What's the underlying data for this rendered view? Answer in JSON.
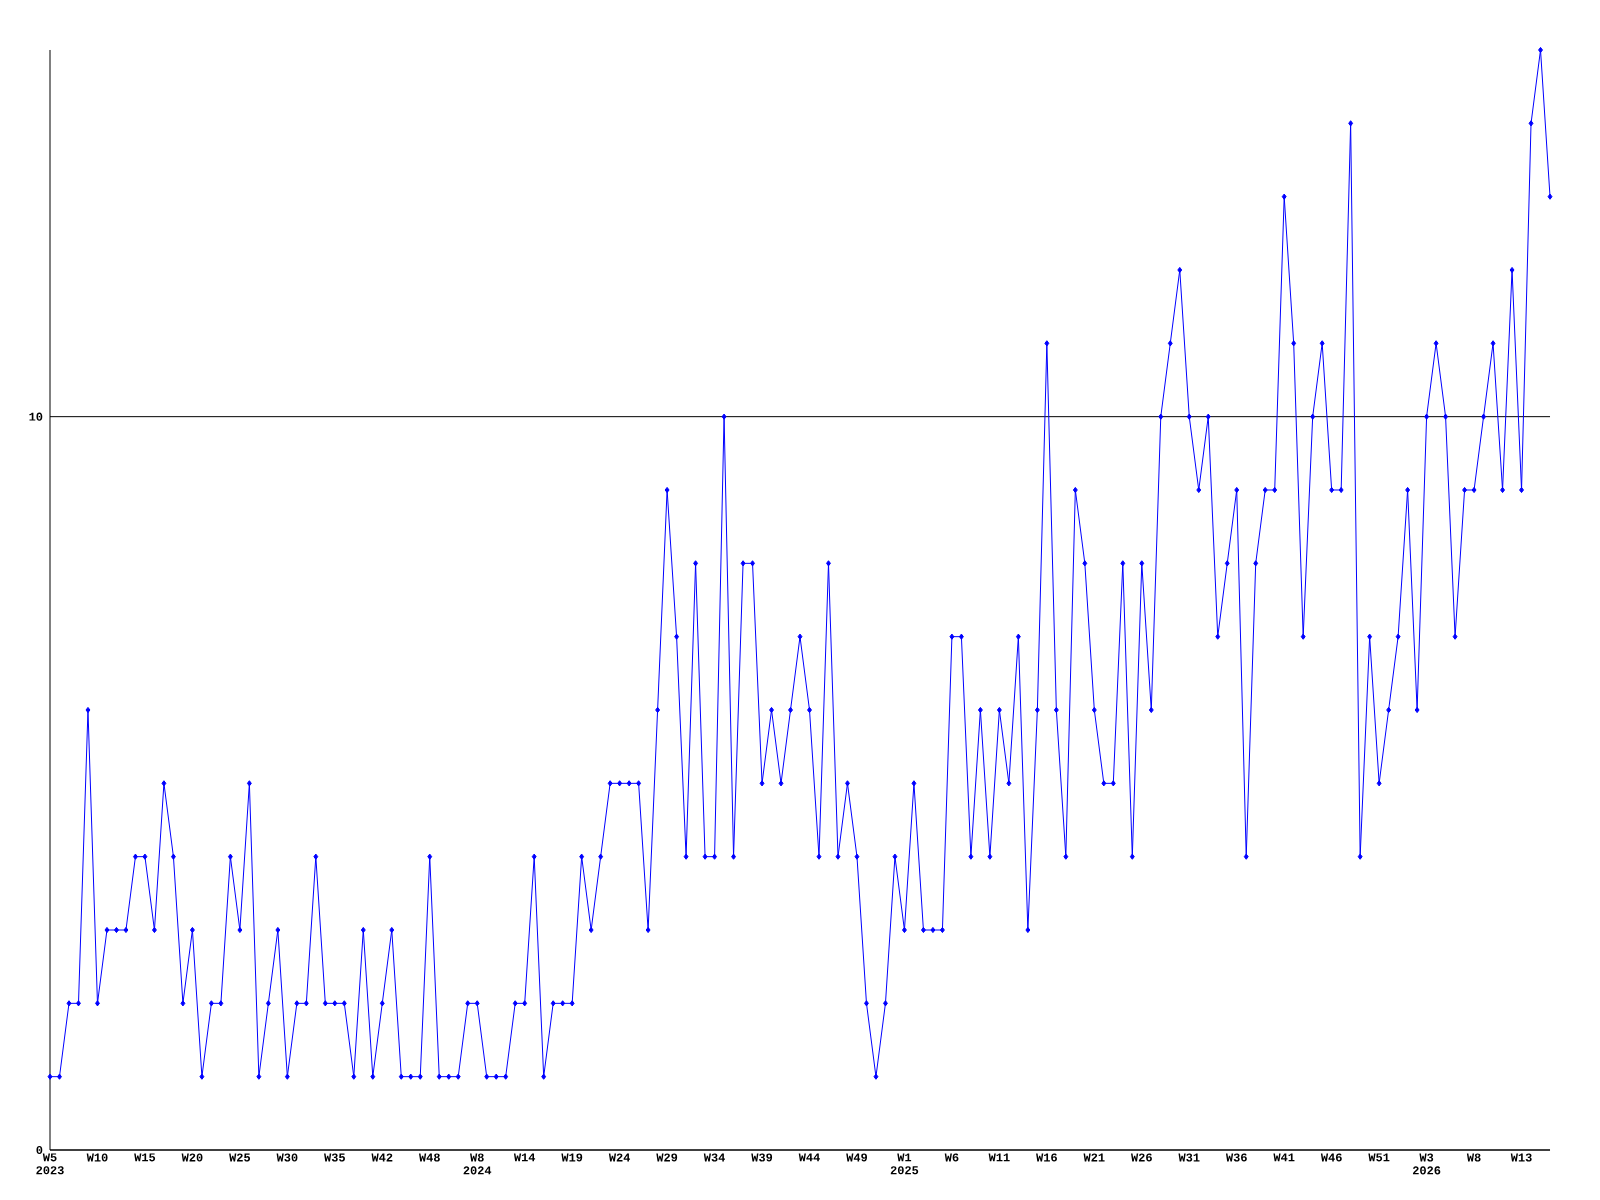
{
  "chart_data": {
    "type": "line",
    "categories": [
      "W5 2023",
      null,
      null,
      null,
      null,
      "W10",
      null,
      null,
      null,
      null,
      "W15",
      null,
      null,
      null,
      null,
      "W20",
      null,
      null,
      null,
      null,
      "W25",
      null,
      null,
      null,
      null,
      "W30",
      null,
      null,
      null,
      null,
      "W35",
      null,
      null,
      null,
      null,
      "W42",
      null,
      null,
      null,
      null,
      "W48",
      null,
      null,
      null,
      null,
      "W8 2024",
      null,
      null,
      null,
      null,
      "W14",
      null,
      null,
      null,
      null,
      "W19",
      null,
      null,
      null,
      null,
      "W24",
      null,
      null,
      null,
      null,
      "W29",
      null,
      null,
      null,
      null,
      "W34",
      null,
      null,
      null,
      null,
      "W39",
      null,
      null,
      null,
      null,
      "W44",
      null,
      null,
      null,
      null,
      "W49",
      null,
      null,
      null,
      null,
      "W1 2025",
      null,
      null,
      null,
      null,
      "W6",
      null,
      null,
      null,
      null,
      "W11",
      null,
      null,
      null,
      null,
      "W16",
      null,
      null,
      null,
      null,
      "W21",
      null,
      null,
      null,
      null,
      "W26",
      null,
      null,
      null,
      null,
      "W31",
      null,
      null,
      null,
      null,
      "W36",
      null,
      null,
      null,
      null,
      "W41",
      null,
      null,
      null,
      null,
      "W46",
      null,
      null,
      null,
      null,
      "W51",
      null,
      null,
      null,
      null,
      "W3 2026",
      null,
      null,
      null,
      null,
      "W8",
      null,
      null,
      null,
      null,
      "W13",
      null,
      null,
      null
    ],
    "series": [
      {
        "color": "#0000ff",
        "values": [
          1,
          1,
          2,
          2,
          6,
          2,
          3,
          3,
          3,
          4,
          4,
          3,
          5,
          4,
          2,
          3,
          1,
          2,
          2,
          4,
          3,
          5,
          1,
          2,
          3,
          1,
          2,
          2,
          4,
          2,
          2,
          2,
          1,
          3,
          1,
          2,
          3,
          1,
          1,
          1,
          4,
          1,
          1,
          1,
          2,
          2,
          1,
          1,
          1,
          2,
          2,
          4,
          1,
          2,
          2,
          2,
          4,
          3,
          4,
          5,
          5,
          5,
          5,
          3,
          6,
          9,
          7,
          4,
          8,
          4,
          4,
          10,
          4,
          8,
          8,
          5,
          6,
          5,
          6,
          7,
          6,
          4,
          8,
          4,
          5,
          4,
          2,
          1,
          2,
          4,
          3,
          5,
          3,
          3,
          3,
          7,
          7,
          4,
          6,
          4,
          6,
          5,
          7,
          3,
          6,
          11,
          6,
          4,
          9,
          8,
          6,
          5,
          5,
          8,
          4,
          8,
          6,
          10,
          11,
          12,
          10,
          9,
          10,
          7,
          8,
          9,
          4,
          8,
          9,
          9,
          13,
          11,
          7,
          10,
          11,
          9,
          9,
          14,
          4,
          7,
          5,
          6,
          7,
          9,
          6,
          10,
          11,
          10,
          7,
          9,
          9,
          10,
          11,
          9,
          12,
          9,
          14,
          15,
          13
        ]
      }
    ],
    "ylim": [
      0,
      15
    ],
    "yticks": [
      0,
      10
    ],
    "grid": "y",
    "marker": "diamond",
    "line_style": "solid"
  }
}
